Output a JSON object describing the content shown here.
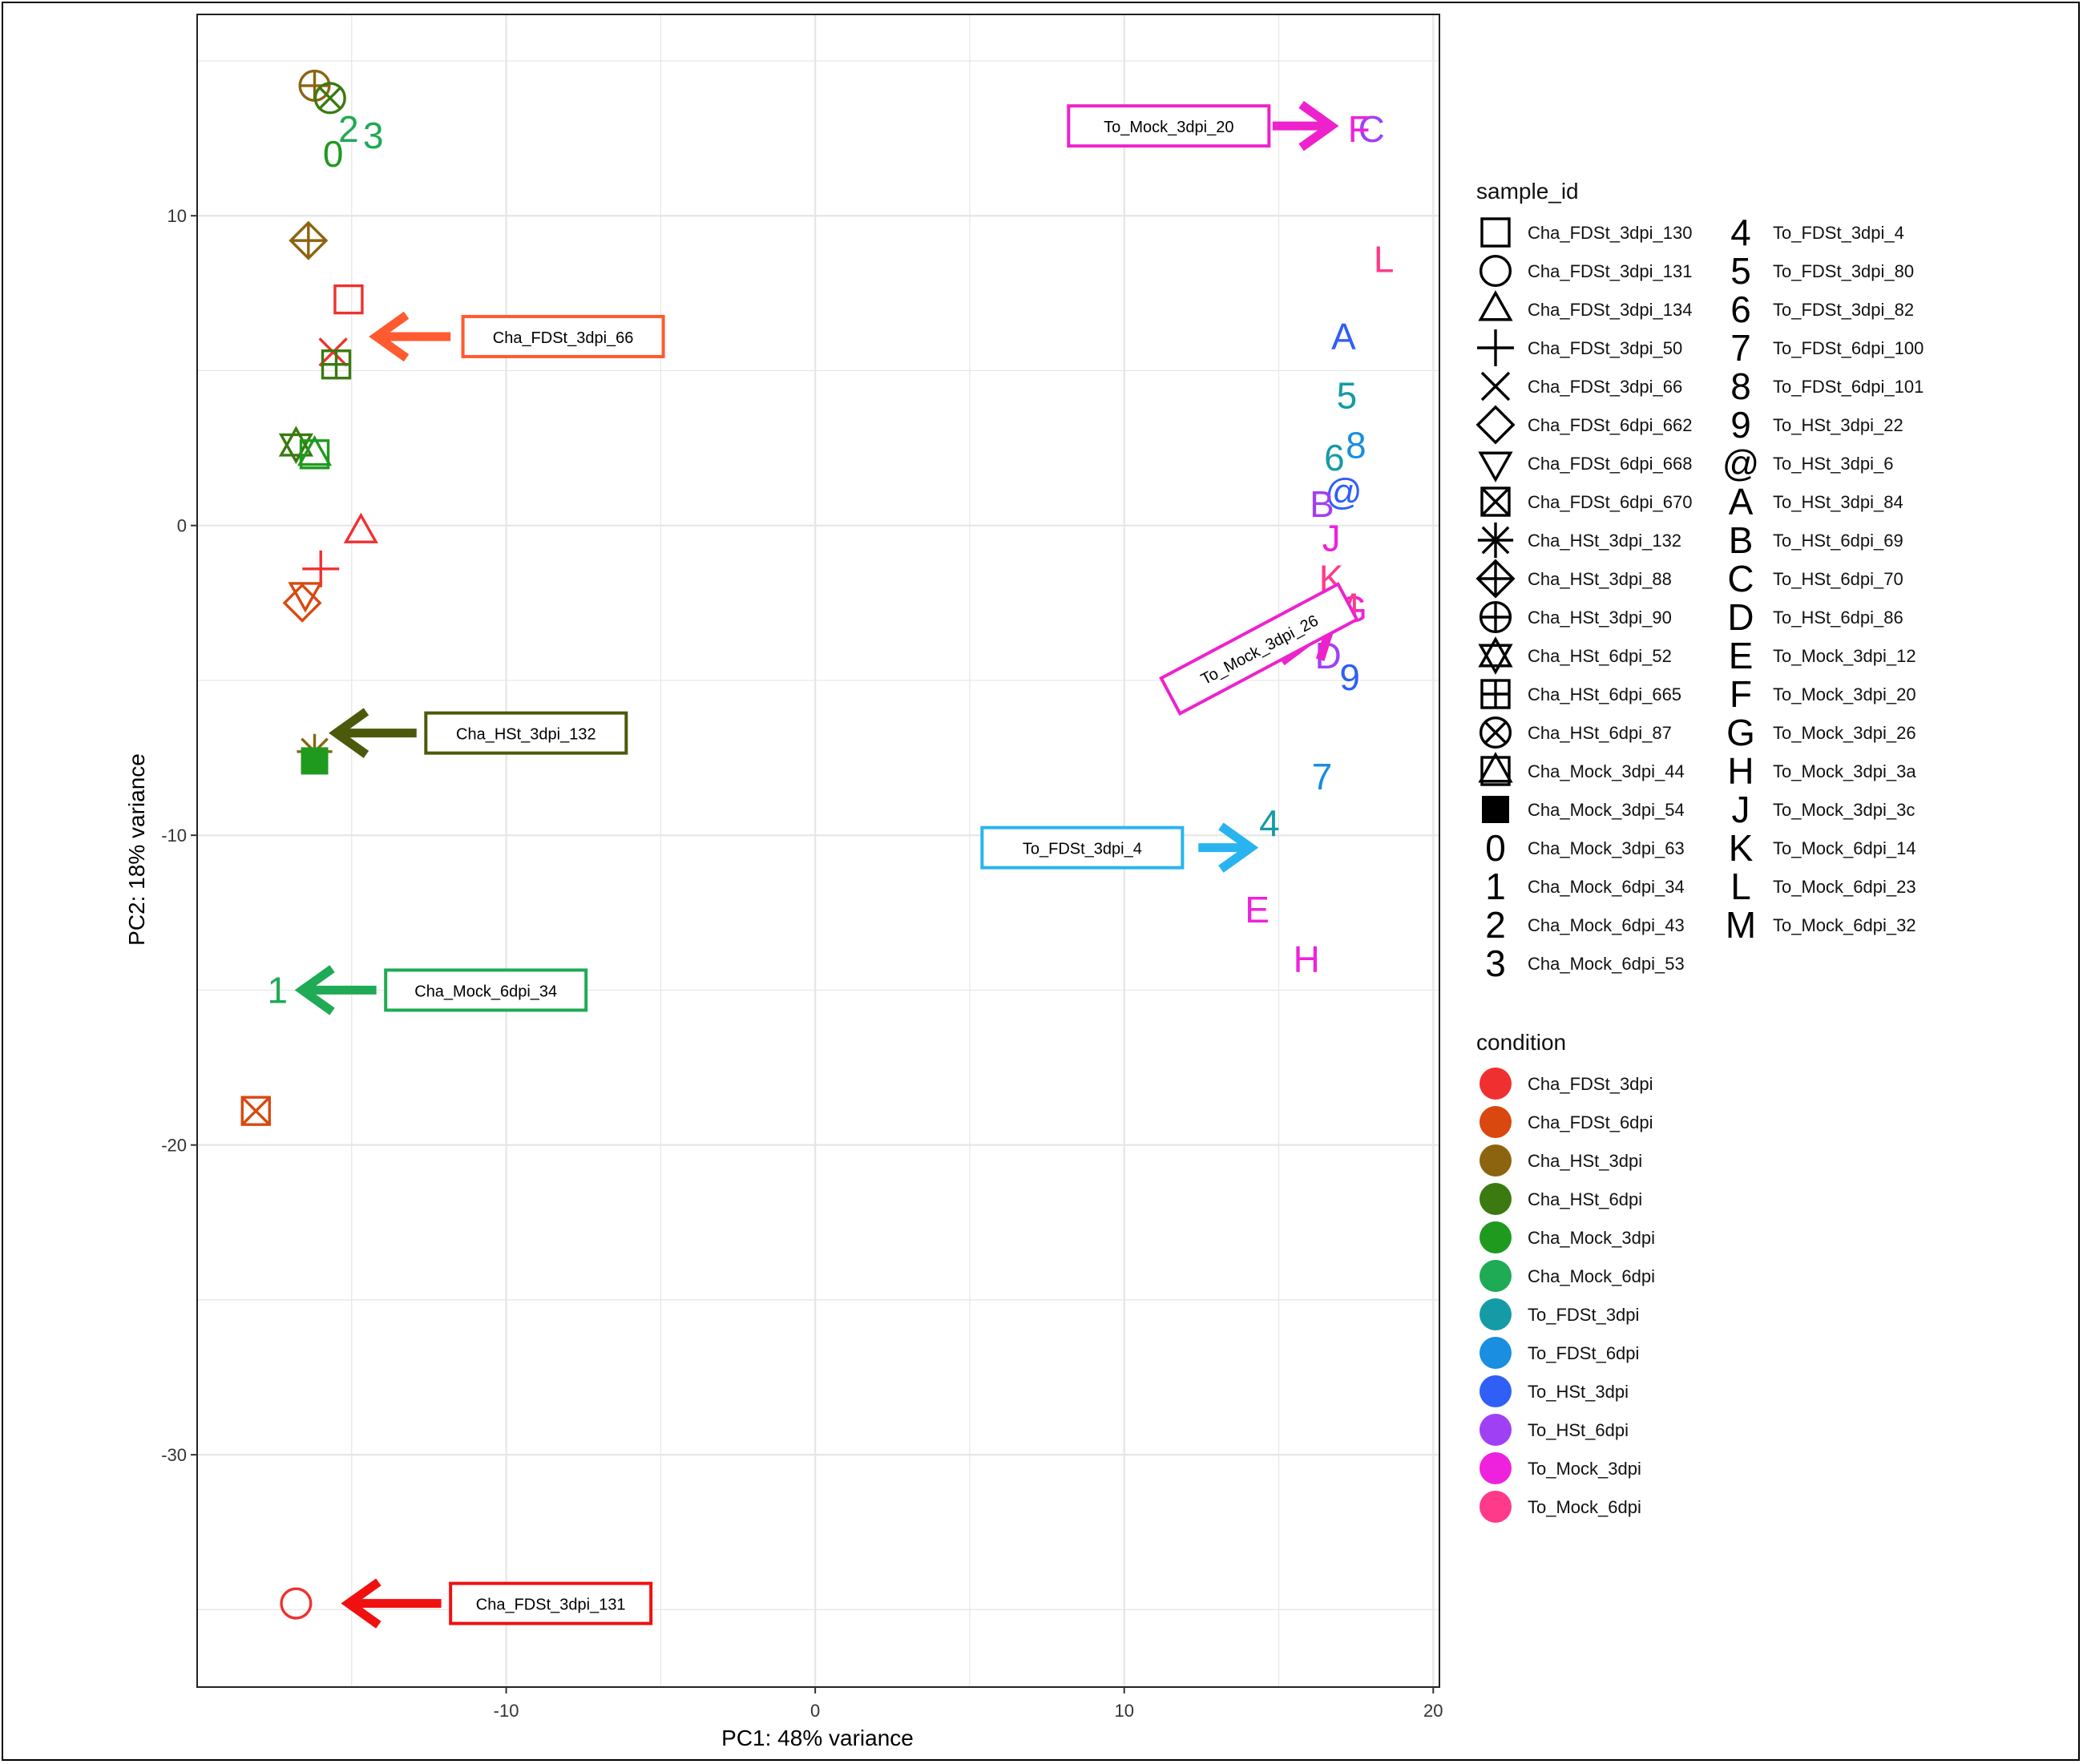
{
  "chart_data": {
    "type": "scatter",
    "xlabel": "PC1: 48% variance",
    "ylabel": "PC2: 18% variance",
    "xlim": [
      -20,
      20.2
    ],
    "ylim": [
      -37.5,
      16.5
    ],
    "x_ticks": [
      -10,
      0,
      10,
      20
    ],
    "y_ticks": [
      -30,
      -20,
      -10,
      0,
      10
    ],
    "grid": true,
    "legend_position": "right",
    "condition_legend": {
      "title": "condition",
      "items": [
        {
          "name": "Cha_FDSt_3dpi",
          "color": "#f03030"
        },
        {
          "name": "Cha_FDSt_6dpi",
          "color": "#d9480f"
        },
        {
          "name": "Cha_HSt_3dpi",
          "color": "#8c6410"
        },
        {
          "name": "Cha_HSt_6dpi",
          "color": "#3a7a10"
        },
        {
          "name": "Cha_Mock_3dpi",
          "color": "#1f9a1f"
        },
        {
          "name": "Cha_Mock_6dpi",
          "color": "#1faa55"
        },
        {
          "name": "To_FDSt_3dpi",
          "color": "#159ba5"
        },
        {
          "name": "To_FDSt_6dpi",
          "color": "#1a8ee0"
        },
        {
          "name": "To_HSt_3dpi",
          "color": "#2f5ff5"
        },
        {
          "name": "To_HSt_6dpi",
          "color": "#a040f5"
        },
        {
          "name": "To_Mock_3dpi",
          "color": "#ee22dd"
        },
        {
          "name": "To_Mock_6dpi",
          "color": "#ff3a8a"
        }
      ]
    },
    "sample_legend": {
      "title": "sample_id",
      "items": [
        {
          "name": "Cha_FDSt_3dpi_130",
          "shape": "square"
        },
        {
          "name": "Cha_FDSt_3dpi_131",
          "shape": "circle"
        },
        {
          "name": "Cha_FDSt_3dpi_134",
          "shape": "triangle"
        },
        {
          "name": "Cha_FDSt_3dpi_50",
          "shape": "plus"
        },
        {
          "name": "Cha_FDSt_3dpi_66",
          "shape": "cross"
        },
        {
          "name": "Cha_FDSt_6dpi_662",
          "shape": "diamond"
        },
        {
          "name": "Cha_FDSt_6dpi_668",
          "shape": "triangle-down"
        },
        {
          "name": "Cha_FDSt_6dpi_670",
          "shape": "square-x"
        },
        {
          "name": "Cha_HSt_3dpi_132",
          "shape": "asterisk"
        },
        {
          "name": "Cha_HSt_3dpi_88",
          "shape": "diamond-plus"
        },
        {
          "name": "Cha_HSt_3dpi_90",
          "shape": "circle-plus"
        },
        {
          "name": "Cha_HSt_6dpi_52",
          "shape": "star-triangles"
        },
        {
          "name": "Cha_HSt_6dpi_665",
          "shape": "square-plus"
        },
        {
          "name": "Cha_HSt_6dpi_87",
          "shape": "circle-x"
        },
        {
          "name": "Cha_Mock_3dpi_44",
          "shape": "square-triangle"
        },
        {
          "name": "Cha_Mock_3dpi_54",
          "shape": "filled-square"
        },
        {
          "name": "Cha_Mock_3dpi_63",
          "shape": "char",
          "char": "0"
        },
        {
          "name": "Cha_Mock_6dpi_34",
          "shape": "char",
          "char": "1"
        },
        {
          "name": "Cha_Mock_6dpi_43",
          "shape": "char",
          "char": "2"
        },
        {
          "name": "Cha_Mock_6dpi_53",
          "shape": "char",
          "char": "3"
        },
        {
          "name": "To_FDSt_3dpi_4",
          "shape": "char",
          "char": "4"
        },
        {
          "name": "To_FDSt_3dpi_80",
          "shape": "char",
          "char": "5"
        },
        {
          "name": "To_FDSt_3dpi_82",
          "shape": "char",
          "char": "6"
        },
        {
          "name": "To_FDSt_6dpi_100",
          "shape": "char",
          "char": "7"
        },
        {
          "name": "To_FDSt_6dpi_101",
          "shape": "char",
          "char": "8"
        },
        {
          "name": "To_HSt_3dpi_22",
          "shape": "char",
          "char": "9"
        },
        {
          "name": "To_HSt_3dpi_6",
          "shape": "char",
          "char": "@"
        },
        {
          "name": "To_HSt_3dpi_84",
          "shape": "char",
          "char": "A"
        },
        {
          "name": "To_HSt_6dpi_69",
          "shape": "char",
          "char": "B"
        },
        {
          "name": "To_HSt_6dpi_70",
          "shape": "char",
          "char": "C"
        },
        {
          "name": "To_HSt_6dpi_86",
          "shape": "char",
          "char": "D"
        },
        {
          "name": "To_Mock_3dpi_12",
          "shape": "char",
          "char": "E"
        },
        {
          "name": "To_Mock_3dpi_20",
          "shape": "char",
          "char": "F"
        },
        {
          "name": "To_Mock_3dpi_26",
          "shape": "char",
          "char": "G"
        },
        {
          "name": "To_Mock_3dpi_3a",
          "shape": "char",
          "char": "H"
        },
        {
          "name": "To_Mock_3dpi_3c",
          "shape": "char",
          "char": "J"
        },
        {
          "name": "To_Mock_6dpi_14",
          "shape": "char",
          "char": "K"
        },
        {
          "name": "To_Mock_6dpi_23",
          "shape": "char",
          "char": "L"
        },
        {
          "name": "To_Mock_6dpi_32",
          "shape": "char",
          "char": "M"
        }
      ]
    },
    "points": [
      {
        "sample": "Cha_FDSt_3dpi_130",
        "shape": "square",
        "color": "#f03030",
        "x": -15.1,
        "y": 7.3
      },
      {
        "sample": "Cha_FDSt_3dpi_131",
        "shape": "circle",
        "color": "#f03030",
        "x": -16.8,
        "y": -34.8
      },
      {
        "sample": "Cha_FDSt_3dpi_134",
        "shape": "triangle",
        "color": "#f03030",
        "x": -14.7,
        "y": -0.2
      },
      {
        "sample": "Cha_FDSt_3dpi_50",
        "shape": "plus",
        "color": "#f03030",
        "x": -16.0,
        "y": -1.4
      },
      {
        "sample": "Cha_FDSt_3dpi_66",
        "shape": "cross",
        "color": "#f03030",
        "x": -15.6,
        "y": 5.6
      },
      {
        "sample": "Cha_FDSt_6dpi_662",
        "shape": "diamond",
        "color": "#d9480f",
        "x": -16.6,
        "y": -2.5
      },
      {
        "sample": "Cha_FDSt_6dpi_668",
        "shape": "triangle-down",
        "color": "#d9480f",
        "x": -16.5,
        "y": -2.2
      },
      {
        "sample": "Cha_FDSt_6dpi_670",
        "shape": "square-x",
        "color": "#d9480f",
        "x": -18.1,
        "y": -18.9
      },
      {
        "sample": "Cha_HSt_3dpi_132",
        "shape": "asterisk",
        "color": "#8c6410",
        "x": -16.2,
        "y": -7.3
      },
      {
        "sample": "Cha_HSt_3dpi_88",
        "shape": "diamond-plus",
        "color": "#8c6410",
        "x": -16.4,
        "y": 9.2
      },
      {
        "sample": "Cha_HSt_3dpi_90",
        "shape": "circle-plus",
        "color": "#8c6410",
        "x": -16.2,
        "y": 14.2
      },
      {
        "sample": "Cha_HSt_6dpi_52",
        "shape": "star-triangles",
        "color": "#3a7a10",
        "x": -16.8,
        "y": 2.6
      },
      {
        "sample": "Cha_HSt_6dpi_665",
        "shape": "square-plus",
        "color": "#3a7a10",
        "x": -15.5,
        "y": 5.2
      },
      {
        "sample": "Cha_HSt_6dpi_87",
        "shape": "circle-x",
        "color": "#3a7a10",
        "x": -15.7,
        "y": 13.8
      },
      {
        "sample": "Cha_Mock_3dpi_44",
        "shape": "square-triangle",
        "color": "#1f9a1f",
        "x": -16.2,
        "y": 2.3
      },
      {
        "sample": "Cha_Mock_3dpi_54",
        "shape": "filled-square",
        "color": "#1f9a1f",
        "x": -16.2,
        "y": -7.6
      },
      {
        "sample": "Cha_Mock_3dpi_63",
        "shape": "char",
        "char": "0",
        "color": "#1f9a1f",
        "x": -15.6,
        "y": 12.0
      },
      {
        "sample": "Cha_Mock_6dpi_34",
        "shape": "char",
        "char": "1",
        "color": "#1faa55",
        "x": -17.4,
        "y": -15.0
      },
      {
        "sample": "Cha_Mock_6dpi_43",
        "shape": "char",
        "char": "2",
        "color": "#1faa55",
        "x": -15.1,
        "y": 12.8
      },
      {
        "sample": "Cha_Mock_6dpi_53",
        "shape": "char",
        "char": "3",
        "color": "#1faa55",
        "x": -14.3,
        "y": 12.6
      },
      {
        "sample": "To_FDSt_3dpi_4",
        "shape": "char",
        "char": "4",
        "color": "#159ba5",
        "x": 14.7,
        "y": -9.6
      },
      {
        "sample": "To_FDSt_3dpi_80",
        "shape": "char",
        "char": "5",
        "color": "#159ba5",
        "x": 17.2,
        "y": 4.2
      },
      {
        "sample": "To_FDSt_3dpi_82",
        "shape": "char",
        "char": "6",
        "color": "#159ba5",
        "x": 16.8,
        "y": 2.2
      },
      {
        "sample": "To_FDSt_6dpi_100",
        "shape": "char",
        "char": "7",
        "color": "#1a8ee0",
        "x": 16.4,
        "y": -8.1
      },
      {
        "sample": "To_FDSt_6dpi_101",
        "shape": "char",
        "char": "8",
        "color": "#1a8ee0",
        "x": 17.5,
        "y": 2.6
      },
      {
        "sample": "To_HSt_3dpi_22",
        "shape": "char",
        "char": "9",
        "color": "#2f5ff5",
        "x": 17.3,
        "y": -4.9
      },
      {
        "sample": "To_HSt_3dpi_6",
        "shape": "char",
        "char": "@",
        "color": "#2f5ff5",
        "x": 17.1,
        "y": 1.1
      },
      {
        "sample": "To_HSt_3dpi_84",
        "shape": "char",
        "char": "A",
        "color": "#2f5ff5",
        "x": 17.1,
        "y": 6.1
      },
      {
        "sample": "To_HSt_6dpi_69",
        "shape": "char",
        "char": "B",
        "color": "#a040f5",
        "x": 16.4,
        "y": 0.7
      },
      {
        "sample": "To_HSt_6dpi_70",
        "shape": "char",
        "char": "C",
        "color": "#a040f5",
        "x": 18.0,
        "y": 12.8
      },
      {
        "sample": "To_HSt_6dpi_86",
        "shape": "char",
        "char": "D",
        "color": "#a040f5",
        "x": 16.6,
        "y": -4.2
      },
      {
        "sample": "To_Mock_3dpi_12",
        "shape": "char",
        "char": "E",
        "color": "#ee22dd",
        "x": 14.3,
        "y": -12.4
      },
      {
        "sample": "To_Mock_3dpi_20",
        "shape": "char",
        "char": "F",
        "color": "#ee22dd",
        "x": 17.6,
        "y": 12.8
      },
      {
        "sample": "To_Mock_3dpi_26",
        "shape": "char",
        "char": "G",
        "color": "#ee22dd",
        "x": 17.4,
        "y": -2.7
      },
      {
        "sample": "To_Mock_3dpi_3a",
        "shape": "char",
        "char": "H",
        "color": "#ee22dd",
        "x": 15.9,
        "y": -14.0
      },
      {
        "sample": "To_Mock_3dpi_3c",
        "shape": "char",
        "char": "J",
        "color": "#ee22dd",
        "x": 16.7,
        "y": -0.4
      },
      {
        "sample": "To_Mock_6dpi_14",
        "shape": "char",
        "char": "K",
        "color": "#ff3a8a",
        "x": 16.7,
        "y": -1.7
      },
      {
        "sample": "To_Mock_6dpi_23",
        "shape": "char",
        "char": "L",
        "color": "#ff3a8a",
        "x": 18.4,
        "y": 8.6
      },
      {
        "sample": "To_Mock_6dpi_32",
        "shape": "char",
        "char": "M",
        "color": "#ff3a8a",
        "x": 17.1,
        "y": -2.6
      }
    ],
    "annotations": [
      {
        "text": "To_Mock_3dpi_20",
        "color": "#ee22cc",
        "box_x": 8.2,
        "box_y": 12.9,
        "from_x": 14.8,
        "from_y": 12.9,
        "to_x": 16.7,
        "to_y": 12.9
      },
      {
        "text": "Cha_FDSt_3dpi_66",
        "color": "#ff5a30",
        "box_x": -11.4,
        "box_y": 6.1,
        "from_x": -11.8,
        "from_y": 6.1,
        "to_x": -14.2,
        "to_y": 6.1
      },
      {
        "text": "Cha_HSt_3dpi_132",
        "color": "#4b5a0a",
        "box_x": -12.6,
        "box_y": -6.7,
        "from_x": -12.9,
        "from_y": -6.7,
        "to_x": -15.5,
        "to_y": -6.7
      },
      {
        "text": "To_Mock_3dpi_26",
        "color": "#ee22cc",
        "box_x": 11.5,
        "box_y": -5.5,
        "from_x": 15.1,
        "from_y": -4.4,
        "to_x": 16.7,
        "to_y": -3.2,
        "angle": -28
      },
      {
        "text": "To_FDSt_3dpi_4",
        "color": "#29b4f0",
        "box_x": 5.4,
        "box_y": -10.4,
        "from_x": 12.4,
        "from_y": -10.4,
        "to_x": 14.1,
        "to_y": -10.4
      },
      {
        "text": "Cha_Mock_6dpi_34",
        "color": "#1faa55",
        "box_x": -13.9,
        "box_y": -15.0,
        "from_x": -14.2,
        "from_y": -15.0,
        "to_x": -16.6,
        "to_y": -15.0
      },
      {
        "text": "Cha_FDSt_3dpi_131",
        "color": "#f01010",
        "box_x": -11.8,
        "box_y": -34.8,
        "from_x": -12.1,
        "from_y": -34.8,
        "to_x": -15.1,
        "to_y": -34.8
      }
    ]
  }
}
